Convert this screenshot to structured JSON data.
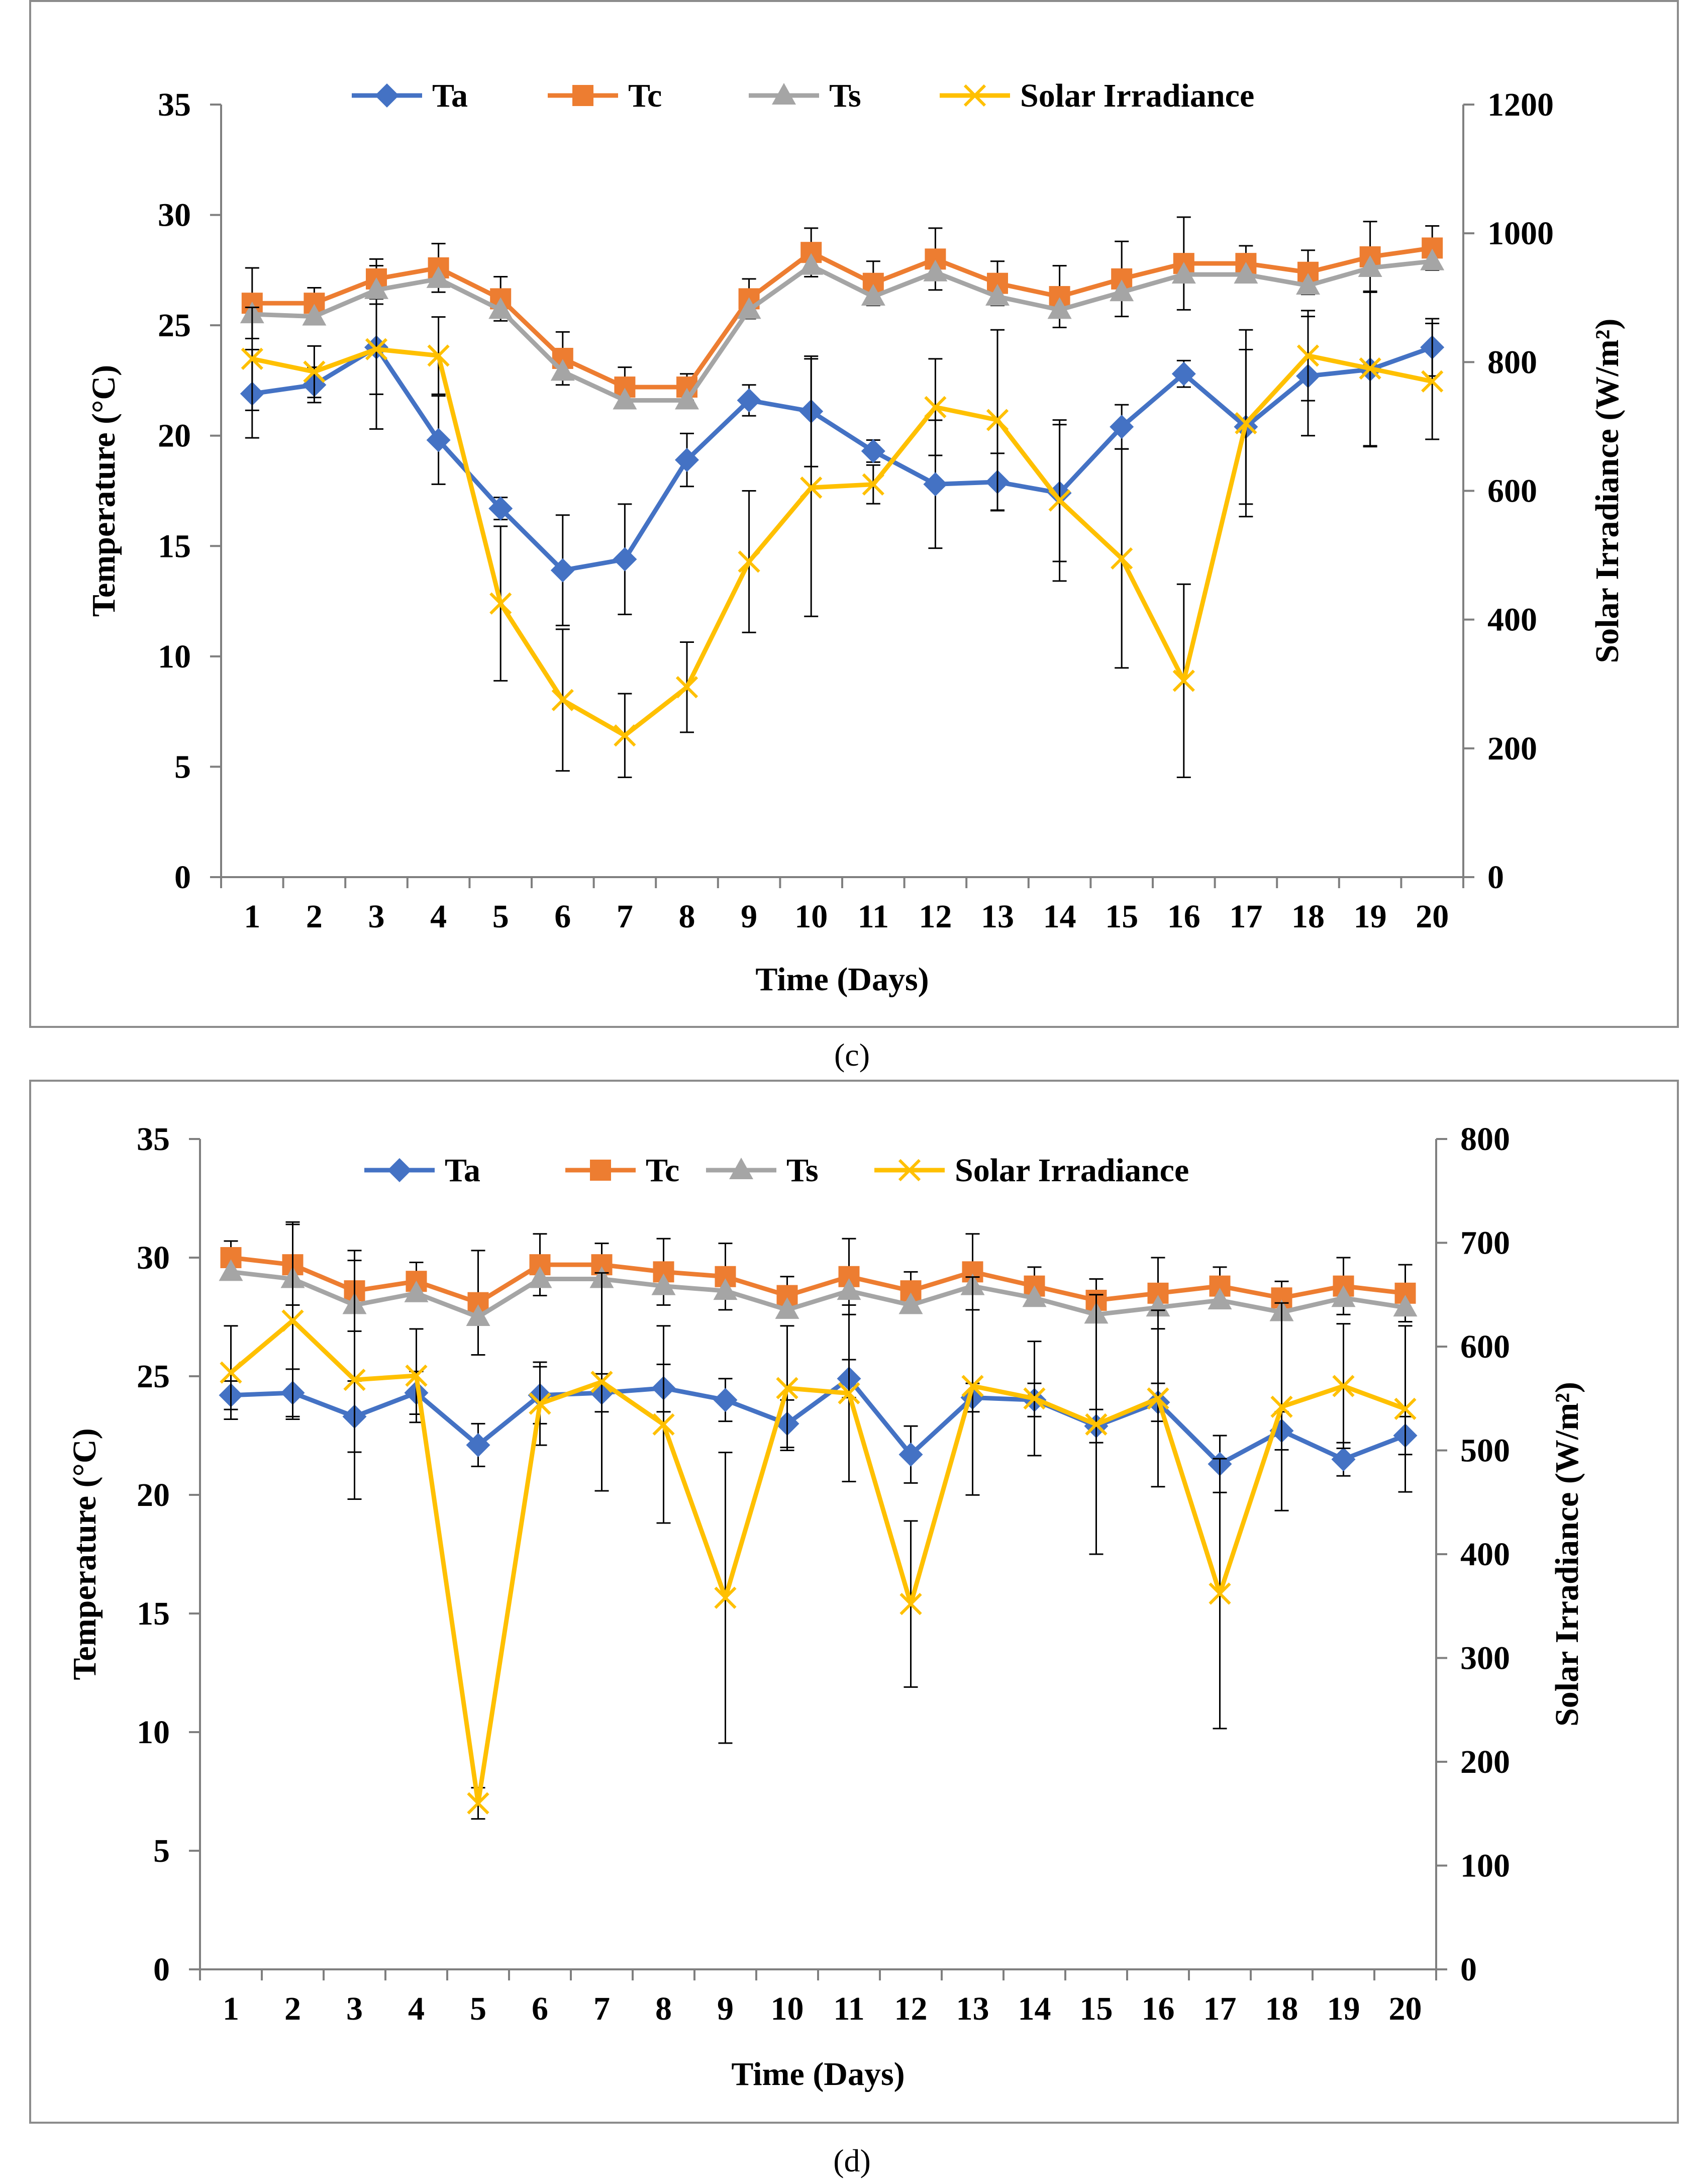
{
  "colors": {
    "Ta": "#4472C4",
    "Tc": "#ED7D31",
    "Ts": "#A5A5A5",
    "Solar Irradiance": "#FFC000"
  },
  "panels": [
    {
      "label": "(c)"
    },
    {
      "label": "(d)"
    }
  ],
  "chart_data": [
    {
      "type": "line",
      "title": "",
      "xlabel": "Time  (Days)",
      "ylabel": "Temperature (°C)",
      "y2label": "Solar Irradiance (W/m²)",
      "ylim": [
        0,
        35
      ],
      "y2lim": [
        0,
        1200
      ],
      "yticks": [
        0,
        5,
        10,
        15,
        20,
        25,
        30,
        35
      ],
      "y2ticks": [
        0,
        200,
        400,
        600,
        800,
        1000,
        1200
      ],
      "legend_position": "top",
      "categories": [
        "1",
        "2",
        "3",
        "4",
        "5",
        "6",
        "7",
        "8",
        "9",
        "10",
        "11",
        "12",
        "13",
        "14",
        "15",
        "16",
        "17",
        "18",
        "19",
        "20"
      ],
      "series": [
        {
          "name": "Ta",
          "axis": "left",
          "marker": "diamond",
          "values": [
            21.9,
            22.3,
            24.0,
            19.8,
            16.7,
            13.9,
            14.4,
            18.9,
            21.6,
            21.1,
            19.3,
            17.8,
            17.9,
            17.4,
            20.4,
            22.8,
            20.4,
            22.7,
            23.0,
            24.0
          ],
          "errors": [
            2.0,
            0.8,
            3.7,
            2.0,
            0.5,
            2.5,
            2.5,
            1.2,
            0.7,
            2.5,
            0.5,
            2.9,
            1.3,
            3.1,
            1.0,
            0.6,
            3.5,
            2.7,
            3.5,
            1.3
          ]
        },
        {
          "name": "Tc",
          "axis": "left",
          "marker": "square",
          "values": [
            26.0,
            26.0,
            27.1,
            27.6,
            26.2,
            23.5,
            22.2,
            22.2,
            26.2,
            28.3,
            26.9,
            28.0,
            26.9,
            26.3,
            27.1,
            27.8,
            27.8,
            27.4,
            28.1,
            28.5
          ],
          "errors": [
            1.6,
            0.7,
            0.9,
            1.1,
            1.0,
            1.2,
            0.9,
            0.6,
            0.9,
            1.1,
            1.0,
            1.4,
            1.0,
            1.4,
            1.7,
            2.1,
            0.8,
            1.0,
            1.6,
            1.0
          ]
        },
        {
          "name": "Ts",
          "axis": "left",
          "marker": "triangle",
          "values": [
            25.5,
            25.4,
            26.6,
            27.1,
            25.7,
            22.9,
            21.6,
            21.6,
            25.7,
            27.7,
            26.3,
            27.4,
            26.3,
            25.7,
            26.5,
            27.3,
            27.3,
            26.8,
            27.6,
            27.9
          ],
          "errors": [
            0,
            0,
            0,
            0,
            0,
            0,
            0,
            0,
            0,
            0,
            0,
            0,
            0,
            0,
            0,
            0,
            0,
            0,
            0,
            0
          ]
        },
        {
          "name": "Solar Irradiance",
          "axis": "right",
          "marker": "x",
          "values": [
            805,
            785,
            820,
            810,
            425,
            275,
            220,
            295,
            490,
            605,
            610,
            730,
            710,
            585,
            495,
            305,
            705,
            810,
            790,
            770
          ],
          "errors": [
            80,
            40,
            70,
            60,
            120,
            110,
            65,
            70,
            110,
            200,
            30,
            75,
            140,
            125,
            170,
            150,
            145,
            70,
            120,
            90
          ]
        }
      ]
    },
    {
      "type": "line",
      "title": "",
      "xlabel": "Time  (Days)",
      "ylabel": "Temperature (°C)",
      "y2label": "Solar Irradiance (W/m²)",
      "ylim": [
        0,
        35
      ],
      "y2lim": [
        0,
        800
      ],
      "yticks": [
        0,
        5,
        10,
        15,
        20,
        25,
        30,
        35
      ],
      "y2ticks": [
        0,
        100,
        200,
        300,
        400,
        500,
        600,
        700,
        800
      ],
      "legend_position": "top",
      "categories": [
        "1",
        "2",
        "3",
        "4",
        "5",
        "6",
        "7",
        "8",
        "9",
        "10",
        "11",
        "12",
        "13",
        "14",
        "15",
        "16",
        "17",
        "18",
        "19",
        "20"
      ],
      "series": [
        {
          "name": "Ta",
          "axis": "left",
          "marker": "diamond",
          "values": [
            24.2,
            24.3,
            23.3,
            24.3,
            22.1,
            24.2,
            24.3,
            24.5,
            24.0,
            23.0,
            24.9,
            21.7,
            24.1,
            24.0,
            22.9,
            23.9,
            21.3,
            22.7,
            21.5,
            22.5
          ],
          "errors": [
            0.6,
            1.0,
            1.5,
            0.9,
            0.9,
            1.2,
            0.8,
            1.0,
            0.9,
            1.0,
            0.8,
            1.2,
            0.6,
            0.7,
            0.7,
            0.8,
            1.2,
            0.8,
            0.7,
            0.8
          ]
        },
        {
          "name": "Tc",
          "axis": "left",
          "marker": "square",
          "values": [
            30.0,
            29.7,
            28.6,
            29.0,
            28.1,
            29.7,
            29.7,
            29.4,
            29.2,
            28.4,
            29.2,
            28.6,
            29.4,
            28.8,
            28.2,
            28.5,
            28.8,
            28.3,
            28.8,
            28.5
          ],
          "errors": [
            0.7,
            1.7,
            1.7,
            0.8,
            2.2,
            1.3,
            0.9,
            1.4,
            1.4,
            0.8,
            1.6,
            0.8,
            1.6,
            0.8,
            0.9,
            1.5,
            0.8,
            0.7,
            1.2,
            1.2
          ]
        },
        {
          "name": "Ts",
          "axis": "left",
          "marker": "triangle",
          "values": [
            29.4,
            29.1,
            28.0,
            28.5,
            27.5,
            29.1,
            29.1,
            28.8,
            28.6,
            27.8,
            28.6,
            28.0,
            28.8,
            28.3,
            27.6,
            27.9,
            28.2,
            27.7,
            28.3,
            27.9
          ],
          "errors": [
            0,
            0,
            0,
            0,
            0,
            0,
            0,
            0,
            0,
            0,
            0,
            0,
            0,
            0,
            0,
            0,
            0,
            0,
            0,
            0
          ]
        },
        {
          "name": "Solar Irradiance",
          "axis": "right",
          "marker": "x",
          "values": [
            575,
            625,
            568,
            572,
            160,
            545,
            566,
            525,
            358,
            560,
            555,
            352,
            562,
            550,
            525,
            550,
            362,
            542,
            562,
            540
          ],
          "errors": [
            45,
            95,
            115,
            45,
            15,
            40,
            105,
            95,
            140,
            60,
            85,
            80,
            105,
            55,
            125,
            85,
            130,
            100,
            60,
            80
          ]
        }
      ]
    }
  ]
}
